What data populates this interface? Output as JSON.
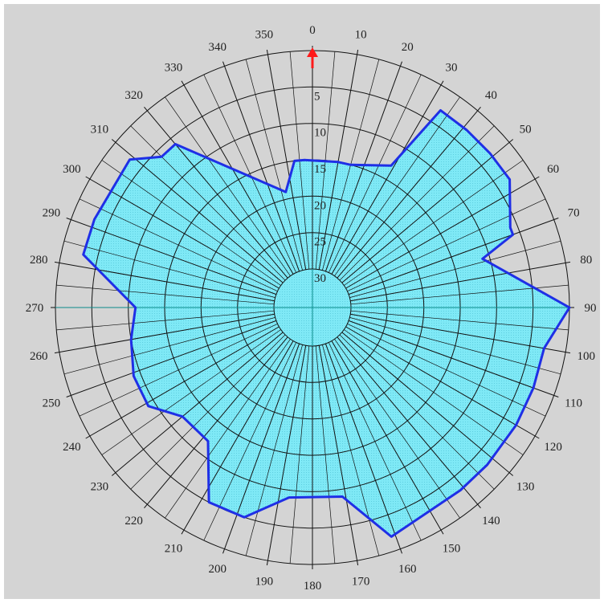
{
  "chart_data": {
    "type": "polar-area",
    "radial_axis": {
      "ticks": [
        5,
        10,
        15,
        20,
        25,
        30
      ],
      "tick_labels": [
        "5",
        "10",
        "15",
        "20",
        "25",
        "30"
      ],
      "range": [
        0,
        30
      ],
      "reversed": true
    },
    "angular_axis": {
      "ticks": [
        0,
        10,
        20,
        30,
        40,
        50,
        60,
        70,
        80,
        90,
        100,
        110,
        120,
        130,
        140,
        150,
        160,
        170,
        180,
        190,
        200,
        210,
        220,
        230,
        240,
        250,
        260,
        270,
        280,
        290,
        300,
        310,
        320,
        330,
        340,
        350
      ],
      "tick_labels": [
        "0",
        "10",
        "20",
        "30",
        "40",
        "50",
        "60",
        "70",
        "80",
        "90",
        "100",
        "110",
        "120",
        "130",
        "140",
        "150",
        "160",
        "170",
        "180",
        "190",
        "200",
        "210",
        "220",
        "230",
        "240",
        "250",
        "260",
        "270",
        "280",
        "290",
        "300",
        "310",
        "320",
        "330",
        "340",
        "350"
      ],
      "direction": "clockwise",
      "zero": "north",
      "north_arrow": true
    },
    "series": [
      {
        "angles": [
          357,
          10,
          15,
          29,
          33,
          41,
          49,
          57,
          68,
          70,
          74,
          90,
          100,
          110,
          120,
          132,
          141,
          161,
          171,
          187,
          198,
          208,
          218,
          230,
          239,
          249,
          260,
          270,
          283,
          292,
          309,
          315,
          320,
          347,
          353
        ],
        "values": [
          15,
          15,
          15,
          13,
          3,
          3,
          3,
          3,
          6,
          6,
          11,
          0,
          3,
          3,
          3,
          3,
          3,
          2,
          9,
          9,
          5,
          5,
          12,
          12,
          9,
          9,
          10,
          11,
          3,
          3,
          3,
          6,
          6,
          19,
          15
        ],
        "color": "#1f2fe6",
        "fill": "#7fe9f6"
      }
    ],
    "grid": true
  },
  "colors": {
    "background": "#d4d4d4",
    "fill": "#7fe9f6",
    "outline": "#1f2fe6",
    "grid": "#111111",
    "arrow": "#ff1a1a"
  }
}
